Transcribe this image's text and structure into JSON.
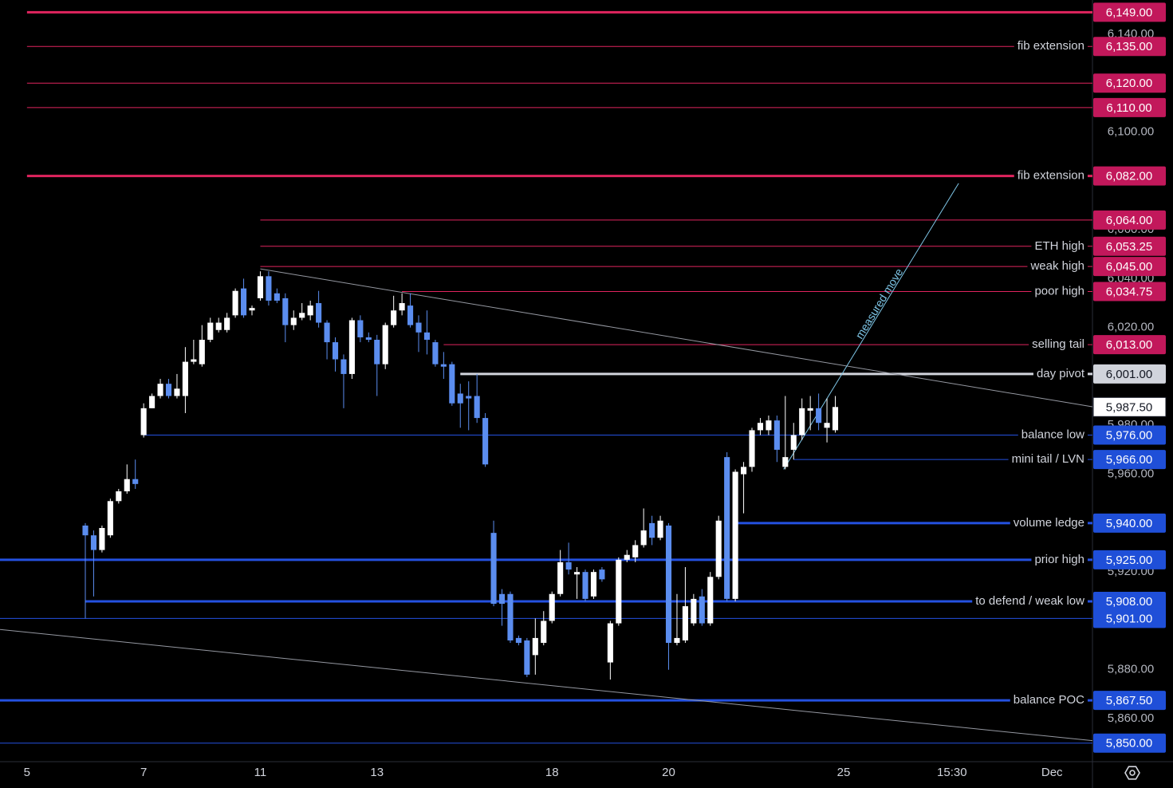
{
  "chart_data": {
    "type": "candlestick",
    "up_color": "#ffffff",
    "down_color": "#5b8def",
    "open": [
      5939,
      5935,
      5929,
      5935,
      5949,
      5953,
      5958,
      5976,
      5987,
      5992,
      5997,
      5992,
      5992,
      6006,
      6005,
      6015,
      6019,
      6019,
      6025,
      6036,
      6027,
      6032,
      6041,
      6034,
      6032,
      6021,
      6024,
      6025,
      6030,
      6022,
      6014,
      6007,
      6001,
      6023,
      6016,
      6015,
      6005,
      6021,
      6027,
      6029,
      6022,
      6018,
      6014,
      6005,
      6005,
      5993,
      5992,
      5992,
      5983,
      5936,
      5911,
      5911,
      5893,
      5892,
      5886,
      5891,
      5900,
      5911,
      5924,
      5919,
      5920,
      5910,
      5921,
      5883,
      5899,
      5925,
      5926,
      5931,
      5940,
      5934,
      5939,
      5891,
      5892,
      5899,
      5910,
      5899,
      5918,
      5967,
      5909,
      5960,
      5963,
      5978,
      5978,
      5982,
      5963,
      5970,
      5976,
      5986,
      5987,
      5979,
      5978
    ],
    "high": [
      5940,
      5937,
      5939,
      5950,
      5954,
      5964,
      5966,
      5989,
      5993,
      5999,
      5999,
      6001,
      6012,
      6015,
      6021,
      6024,
      6024,
      6026,
      6036,
      6040,
      6029,
      6043,
      6043,
      6036,
      6034,
      6027,
      6030,
      6031,
      6035,
      6023,
      6016,
      6009,
      6024,
      6025,
      6018,
      6017,
      6022,
      6033,
      6034,
      6034,
      6025,
      6027,
      6015,
      6010,
      6006,
      5997,
      5998,
      6001,
      5985,
      5941,
      5913,
      5912,
      5894,
      5893,
      5901,
      5904,
      5912,
      5929,
      5932,
      5922,
      5921,
      5921,
      5922,
      5900,
      5926,
      5929,
      5933,
      5946,
      5943,
      5943,
      5940,
      5911,
      5922,
      5911,
      5913,
      5920,
      5943,
      5969,
      5962,
      5965,
      5979,
      5983,
      5984,
      5984,
      5992,
      5981,
      5991,
      5992,
      5993,
      5991,
      5992
    ],
    "low": [
      5901,
      5910,
      5928,
      5934,
      5948,
      5952,
      5954,
      5975,
      5987,
      5991,
      5991,
      5991,
      5985,
      6005,
      6004,
      6014,
      6018,
      6018,
      6024,
      6024,
      6025,
      6031,
      6029,
      6030,
      6014,
      6019,
      6023,
      6023,
      6020,
      6007,
      6002,
      5987,
      5999,
      6014,
      6014,
      5992,
      6003,
      6020,
      6025,
      6020,
      6010,
      6009,
      6004,
      5999,
      5988,
      5979,
      5978,
      5981,
      5963,
      5906,
      5898,
      5891,
      5890,
      5877,
      5878,
      5890,
      5899,
      5910,
      5919,
      5909,
      5908,
      5909,
      5916,
      5876,
      5898,
      5924,
      5924,
      5930,
      5931,
      5933,
      5880,
      5890,
      5891,
      5898,
      5898,
      5898,
      5917,
      5908,
      5908,
      5944,
      5961,
      5976,
      5976,
      5965,
      5962,
      5966,
      5974,
      5978,
      5978,
      5973,
      5977
    ],
    "close": [
      5935,
      5929,
      5938,
      5949,
      5953,
      5958,
      5956,
      5987,
      5992,
      5997,
      5992,
      5995,
      6006,
      6007,
      6015,
      6022,
      6022,
      6024,
      6035,
      6025,
      6028,
      6041,
      6031,
      6031,
      6021,
      6024,
      6026,
      6029,
      6022,
      6014,
      6007,
      6001,
      6023,
      6016,
      6015,
      6005,
      6021,
      6027,
      6030,
      6021,
      6018,
      6015,
      6005,
      6004,
      5989,
      5989,
      5991,
      5983,
      5964,
      5907,
      5907,
      5892,
      5891,
      5878,
      5893,
      5900,
      5911,
      5924,
      5921,
      5920,
      5909,
      5920,
      5917,
      5899,
      5925,
      5927,
      5931,
      5937,
      5934,
      5941,
      5891,
      5893,
      5906,
      5909,
      5899,
      5918,
      5941,
      5909,
      5961,
      5963,
      5978,
      5981,
      5982,
      5970,
      5967,
      5976,
      5987,
      5987,
      5981,
      5981,
      5987.5
    ],
    "xlim": [
      -10.24,
      120.86
    ],
    "xticks": [
      {
        "value": -7,
        "label": "5"
      },
      7,
      {
        "value": 21,
        "label": "11"
      },
      {
        "value": 35,
        "label": "13"
      },
      {
        "value": 56,
        "label": "18"
      },
      {
        "value": 70,
        "label": "20"
      },
      {
        "value": 91,
        "label": "25"
      },
      {
        "value": 104,
        "label": "15:30"
      },
      {
        "value": 116,
        "label": "Dec"
      }
    ],
    "ylim": [
      5842.4,
      6154
    ],
    "yticks": [
      {
        "value": 6140,
        "label": "6,140.00"
      },
      {
        "value": 6100,
        "label": "6,100.00"
      },
      {
        "value": 6060,
        "label": "6,060.00"
      },
      {
        "value": 6040,
        "label": "6,040.00"
      },
      {
        "value": 6020,
        "label": "6,020.00"
      },
      {
        "value": 5980,
        "label": "5,980.00"
      },
      {
        "value": 5960,
        "label": "5,960.00"
      },
      {
        "value": 5920,
        "label": "5,920.00"
      },
      {
        "value": 5880,
        "label": "5,880.00"
      },
      {
        "value": 5860,
        "label": "5,860.00"
      }
    ],
    "levels": [
      {
        "value": 6149,
        "price_label": "6,149.00",
        "color": "#e0245e",
        "thick": true,
        "x_start": -7
      },
      {
        "value": 6135,
        "price_label": "6,135.00",
        "color": "#e0245e",
        "thick": false,
        "x_start": -7,
        "label": "fib extension"
      },
      {
        "value": 6120,
        "price_label": "6,120.00",
        "color": "#e0245e",
        "thick": false,
        "x_start": -7
      },
      {
        "value": 6110,
        "price_label": "6,110.00",
        "color": "#e0245e",
        "thick": false,
        "x_start": -7
      },
      {
        "value": 6082,
        "price_label": "6,082.00",
        "color": "#e0245e",
        "thick": true,
        "x_start": -7,
        "label": "fib extension"
      },
      {
        "value": 6064,
        "price_label": "6,064.00",
        "color": "#e0245e",
        "thick": false,
        "x_start": 21
      },
      {
        "value": 6053.25,
        "price_label": "6,053.25",
        "color": "#e0245e",
        "thick": false,
        "x_start": 21,
        "label": "ETH high"
      },
      {
        "value": 6045,
        "price_label": "6,045.00",
        "color": "#e0245e",
        "thick": false,
        "x_start": 21,
        "label": "weak high"
      },
      {
        "value": 6034.75,
        "price_label": "6,034.75",
        "color": "#e0245e",
        "thick": false,
        "x_start": 38,
        "label": "poor high"
      },
      {
        "value": 6013,
        "price_label": "6,013.00",
        "color": "#e0245e",
        "thick": false,
        "x_start": 43,
        "label": "selling tail"
      },
      {
        "value": 6001,
        "price_label": "6,001.00",
        "color": "#d1d4dc",
        "thick": true,
        "x_start": 45,
        "label": "day pivot"
      },
      {
        "value": 5976,
        "price_label": "5,976.00",
        "color": "#2451e0",
        "thick": false,
        "x_start": 7,
        "label": "balance low"
      },
      {
        "value": 5966,
        "price_label": "5,966.00",
        "color": "#2451e0",
        "thick": false,
        "x_start": 85,
        "label": "mini tail / LVN"
      },
      {
        "value": 5940,
        "price_label": "5,940.00",
        "color": "#2451e0",
        "thick": true,
        "x_start": 78,
        "label": "volume ledge"
      },
      {
        "value": 5925,
        "price_label": "5,925.00",
        "color": "#2451e0",
        "thick": true,
        "label": "prior high"
      },
      {
        "value": 5908,
        "price_label": "5,908.00",
        "color": "#2451e0",
        "thick": true,
        "x_start": 0,
        "label": "to defend / weak low"
      },
      {
        "value": 5901,
        "price_label": "5,901.00",
        "color": "#2451e0",
        "thick": false
      },
      {
        "value": 5867.5,
        "price_label": "5,867.50",
        "color": "#2451e0",
        "thick": true,
        "label": "balance POC"
      },
      {
        "value": 5850,
        "price_label": "5,850.00",
        "color": "#2451e0",
        "thick": false
      }
    ],
    "trendlines": [
      {
        "color": "#9598a1",
        "points": [
          [
            21,
            6044
          ],
          [
            120.86,
            5987.6
          ]
        ]
      },
      {
        "color": "#9598a1",
        "points": [
          [
            -10.24,
            5896.5
          ],
          [
            120.86,
            5851
          ]
        ]
      },
      {
        "color": "#7fc7e8",
        "points": [
          [
            83.8,
            5962
          ],
          [
            104.8,
            6079
          ]
        ],
        "label": "measured move"
      }
    ],
    "last_price": {
      "value": 5987.5,
      "label": "5,987.50"
    }
  }
}
